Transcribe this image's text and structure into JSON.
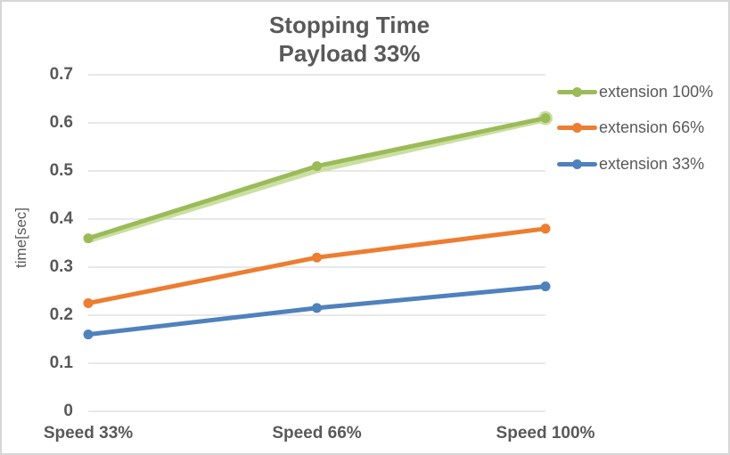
{
  "frame": {
    "background": "#FFFFFF",
    "border_color": "#D6D6D6"
  },
  "chart_data": {
    "type": "line",
    "title": "Stopping Time",
    "subtitle": "Payload 33%",
    "ylabel": "time[sec]",
    "xlabel": "",
    "categories": [
      "Speed 33%",
      "Speed 66%",
      "Speed 100%"
    ],
    "ylim": [
      0,
      0.7
    ],
    "ytick_values": [
      0,
      0.1,
      0.2,
      0.3,
      0.4,
      0.5,
      0.6,
      0.7
    ],
    "ytick_labels": [
      "0",
      "0.1",
      "0.2",
      "0.3",
      "0.4",
      "0.5",
      "0.6",
      "0.7"
    ],
    "grid": "horizontal-only",
    "legend_position": "right",
    "series": [
      {
        "name": "extension 100%",
        "color": "#9BBB59",
        "values": [
          0.36,
          0.51,
          0.61
        ],
        "shadow": {
          "color": "#CBDFA3",
          "values": [
            0.354,
            0.5,
            0.606
          ]
        }
      },
      {
        "name": "extension 66%",
        "color": "#ED7D31",
        "values": [
          0.225,
          0.32,
          0.38
        ]
      },
      {
        "name": "extension 33%",
        "color": "#4F81BD",
        "values": [
          0.16,
          0.215,
          0.26
        ]
      }
    ],
    "colors": {
      "text": "#595959",
      "gridline": "#D9D9D9"
    }
  }
}
